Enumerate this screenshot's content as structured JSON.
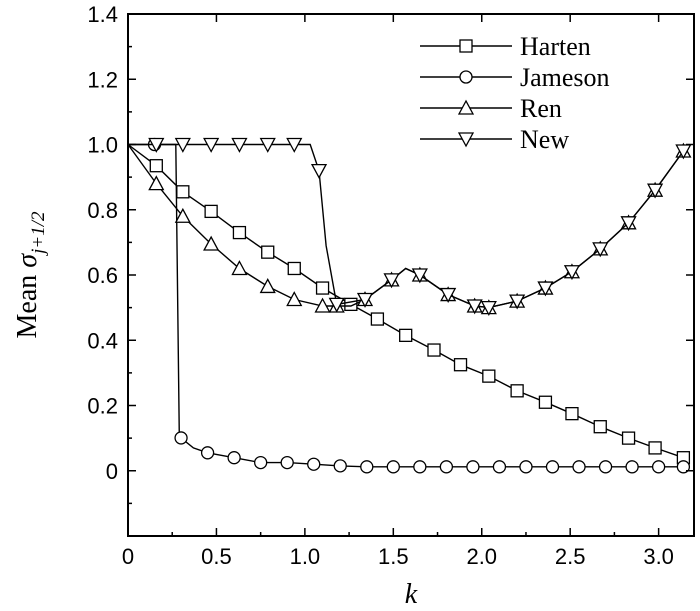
{
  "chart_data": {
    "type": "line",
    "xlabel": "k",
    "ylabel_prefix": "Mean ",
    "ylabel_symbol": "σ",
    "ylabel_subscript": "j+1/2",
    "xlim": [
      0,
      3.2
    ],
    "ylim": [
      -0.2,
      1.4
    ],
    "x_ticks": [
      "0",
      "0.5",
      "1.0",
      "1.5",
      "2.0",
      "2.5",
      "3.0"
    ],
    "x_tick_values": [
      0,
      0.5,
      1.0,
      1.5,
      2.0,
      2.5,
      3.0
    ],
    "y_ticks": [
      "0",
      "0.2",
      "0.4",
      "0.6",
      "0.8",
      "1.0",
      "1.2",
      "1.4"
    ],
    "y_tick_values": [
      0,
      0.2,
      0.4,
      0.6,
      0.8,
      1.0,
      1.2,
      1.4
    ],
    "grid": false,
    "legend_position": "top-right",
    "series": [
      {
        "name": "Harten",
        "marker": "square",
        "x": [
          0,
          0.16,
          0.31,
          0.47,
          0.63,
          0.79,
          0.94,
          1.1,
          1.26,
          1.41,
          1.57,
          1.73,
          1.88,
          2.04,
          2.2,
          2.36,
          2.51,
          2.67,
          2.83,
          2.98,
          3.14
        ],
        "y": [
          1.0,
          0.935,
          0.855,
          0.795,
          0.73,
          0.67,
          0.62,
          0.56,
          0.51,
          0.465,
          0.415,
          0.37,
          0.325,
          0.29,
          0.245,
          0.21,
          0.175,
          0.135,
          0.1,
          0.07,
          0.04
        ]
      },
      {
        "name": "Jameson",
        "marker": "circle",
        "x": [
          0,
          0.14,
          0.27,
          0.29,
          0.37,
          0.45,
          0.6,
          0.75,
          0.9,
          1.05,
          1.2,
          1.35,
          1.5,
          1.65,
          1.8,
          1.95,
          2.1,
          2.25,
          2.4,
          2.55,
          2.7,
          2.85,
          3.0,
          3.14
        ],
        "y": [
          1.0,
          1.0,
          1.0,
          0.105,
          0.07,
          0.055,
          0.04,
          0.025,
          0.025,
          0.02,
          0.015,
          0.012,
          0.012,
          0.012,
          0.012,
          0.012,
          0.012,
          0.012,
          0.012,
          0.012,
          0.012,
          0.012,
          0.012,
          0.012
        ],
        "marker_x": [
          0.15,
          0.3,
          0.45,
          0.6,
          0.75,
          0.9,
          1.05,
          1.2,
          1.35,
          1.5,
          1.65,
          1.8,
          1.95,
          2.1,
          2.25,
          2.4,
          2.55,
          2.7,
          2.85,
          3.0,
          3.14
        ]
      },
      {
        "name": "Ren",
        "marker": "triangle-up",
        "x": [
          0,
          0.16,
          0.31,
          0.47,
          0.63,
          0.79,
          0.94,
          1.1,
          1.26,
          1.34,
          1.49,
          1.57,
          1.65,
          1.81,
          1.96,
          2.04,
          2.2,
          2.36,
          2.51,
          2.67,
          2.83,
          2.98,
          3.14
        ],
        "y": [
          1.0,
          0.88,
          0.78,
          0.695,
          0.62,
          0.565,
          0.525,
          0.505,
          0.505,
          0.525,
          0.585,
          0.62,
          0.6,
          0.54,
          0.505,
          0.5,
          0.52,
          0.56,
          0.61,
          0.68,
          0.76,
          0.86,
          0.98
        ],
        "marker_x": [
          0.16,
          0.31,
          0.47,
          0.63,
          0.79,
          0.94,
          1.1,
          1.18,
          1.34,
          1.49,
          1.65,
          1.81,
          1.96,
          2.04,
          2.2,
          2.36,
          2.51,
          2.67,
          2.83,
          2.98,
          3.14
        ]
      },
      {
        "name": "New",
        "marker": "triangle-down",
        "x": [
          0,
          0.16,
          0.31,
          0.47,
          0.63,
          0.79,
          0.94,
          1.03,
          1.08,
          1.12,
          1.18,
          1.34,
          1.49,
          1.57,
          1.65,
          1.81,
          1.96,
          2.04,
          2.2,
          2.36,
          2.51,
          2.67,
          2.83,
          2.98,
          3.14
        ],
        "y": [
          1.0,
          1.0,
          1.0,
          1.0,
          1.0,
          1.0,
          1.0,
          1.0,
          0.92,
          0.69,
          0.51,
          0.525,
          0.585,
          0.62,
          0.6,
          0.54,
          0.505,
          0.5,
          0.52,
          0.56,
          0.61,
          0.68,
          0.76,
          0.86,
          0.98
        ],
        "marker_x": [
          0.16,
          0.31,
          0.47,
          0.63,
          0.79,
          0.94,
          1.08,
          1.18,
          1.34,
          1.49,
          1.65,
          1.81,
          1.96,
          2.04,
          2.2,
          2.36,
          2.51,
          2.67,
          2.83,
          2.98,
          3.14
        ]
      }
    ]
  }
}
